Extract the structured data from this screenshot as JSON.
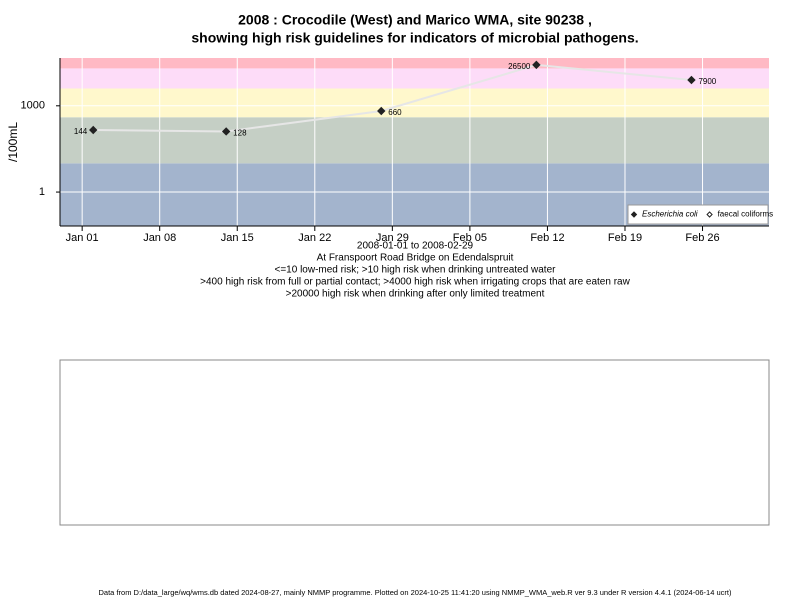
{
  "chart_data": {
    "type": "line",
    "title": [
      "2008 : Crocodile (West) and Marico WMA, site 90238 ,",
      "showing high risk guidelines for indicators of microbial pathogens."
    ],
    "ylabel": "/100mL",
    "subtitle": [
      "2008-01-01 to 2008-02-29",
      "At Franspoort Road Bridge on Edendalspruit",
      "<=10 low-med risk; >10 high risk when drinking untreated water",
      ">400 high risk from full or partial contact; >4000 high risk when irrigating crops that are eaten raw",
      ">20000 high risk when drinking after only limited treatment"
    ],
    "footer": "Data from D:/data_large/wq/wms.db dated 2024-08-27, mainly NMMP programme. Plotted on 2024-10-25 11:41:20 using NMMP_WMA_web.R ver 9.3 under R version 4.4.1 (2024-06-14 ucrt)",
    "log_y": true,
    "grid": true,
    "legend": "bottom-right",
    "risk_thresholds": [
      10,
      400,
      4000,
      20000
    ],
    "risk_colors": [
      "#a3b4cd",
      "#c5cfc5",
      "#fff8cc",
      "#fddcf8",
      "#ffb9c4"
    ],
    "xlim": [
      "2007-12-30",
      "2008-03-03"
    ],
    "ylim": [
      0.066,
      46000
    ],
    "xticks": [
      {
        "value": "2008-01-01",
        "label": "Jan 01"
      },
      {
        "value": "2008-01-08",
        "label": "Jan 08"
      },
      {
        "value": "2008-01-15",
        "label": "Jan 15"
      },
      {
        "value": "2008-01-22",
        "label": "Jan 22"
      },
      {
        "value": "2008-01-29",
        "label": "Jan 29"
      },
      {
        "value": "2008-02-05",
        "label": "Feb 05"
      },
      {
        "value": "2008-02-12",
        "label": "Feb 12"
      },
      {
        "value": "2008-02-19",
        "label": "Feb 19"
      },
      {
        "value": "2008-02-26",
        "label": "Feb 26"
      }
    ],
    "yticks": [
      1,
      1000
    ],
    "x": [
      "2008-01-02",
      "2008-01-14",
      "2008-01-28",
      "2008-02-11",
      "2008-02-25"
    ],
    "series": [
      {
        "name": "Escherichia coli",
        "color": "#222222",
        "values": [
          144,
          128,
          660,
          26500,
          7900
        ]
      },
      {
        "name": "faecal coliforms",
        "color": "#222222",
        "values": [
          null,
          null,
          null,
          null,
          null
        ]
      }
    ]
  }
}
